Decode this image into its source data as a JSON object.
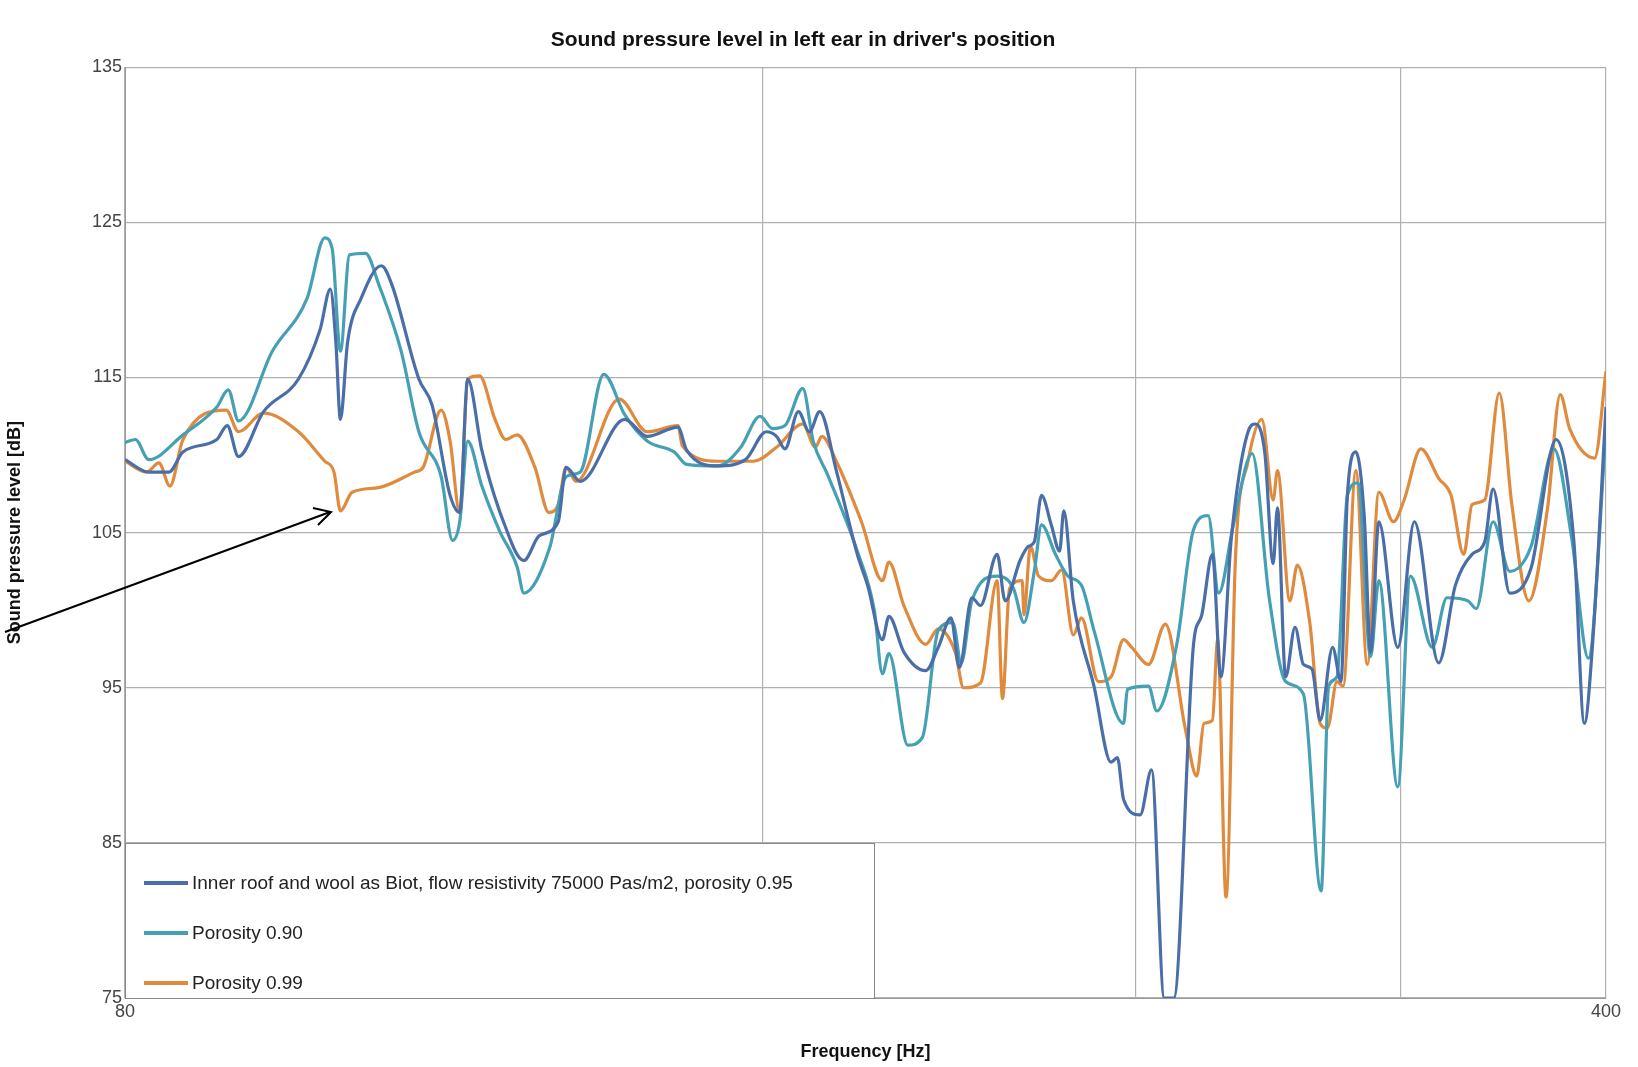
{
  "chart_data": {
    "type": "line",
    "title": "Sound pressure level in left ear in driver's position",
    "xlabel": "Frequency [Hz]",
    "ylabel": "Sound pressure level [dB]",
    "xlim": [
      80,
      400
    ],
    "xticks": [
      80,
      {
        "value": 160,
        "label": null
      },
      {
        "value": 240,
        "label": null
      },
      {
        "value": 320,
        "label": null
      },
      400
    ],
    "ylim": [
      75,
      135
    ],
    "yticks": [
      75,
      85,
      95,
      105,
      115,
      125,
      135
    ],
    "log": "x",
    "grid": true,
    "legend": "bottom left",
    "series": [
      {
        "name": "Inner roof and wool as Biot, flow resistivity 75000 Pas/m2, porosity 0.95",
        "color": "#4a6ea8",
        "x": [
          80,
          82.1,
          83.9,
          85.2,
          88.4,
          89.4,
          90.5,
          93.0,
          96.6,
          98.9,
          100.0,
          100.6,
          101.1,
          101.9,
          103.4,
          105.7,
          106.9,
          110.1,
          111.7,
          113.9,
          115.1,
          116.1,
          117.9,
          120.7,
          123.4,
          125.5,
          128.1,
          129.2,
          131.2,
          137.7,
          141.1,
          145.9,
          147.3,
          152.4,
          157.0,
          160.6,
          162.4,
          163.9,
          166.3,
          168.3,
          170.2,
          173.3,
          177.3,
          179.3,
          182.2,
          183.5,
          186.5,
          191.0,
          193.6,
          196.3,
          198.1,
          200.8,
          202.7,
          206.4,
          208.2,
          211.6,
          213.5,
          214.9,
          216.6,
          218.9,
          220.9,
          221.9,
          224.2,
          229.3,
          233.6,
          235.2,
          236.8,
          241.1,
          244.1,
          247.5,
          250.1,
          255.5,
          257.8,
          260.8,
          263.2,
          266.2,
          271.1,
          273.3,
          276.1,
          278.6,
          279.9,
          282.4,
          285.3,
          287.9,
          290.6,
          293.2,
          297.2,
          299.9,
          302.0,
          304.8,
          307.6,
          309.7,
          312.5,
          319.0,
          324.8,
          333.5,
          339.6,
          345.8,
          350.6,
          353.8,
          360.3,
          368.7,
          378.9,
          386.3,
          390.7,
          394.2,
          400
        ],
        "values": [
          109.7,
          108.9,
          108.9,
          110.2,
          111.0,
          111.9,
          109.9,
          112.8,
          114.9,
          118.1,
          120.7,
          117.3,
          112.3,
          117.3,
          120.1,
          122.2,
          121.0,
          114.9,
          113.2,
          107.4,
          106.3,
          114.9,
          110.3,
          105.7,
          103.2,
          104.8,
          105.7,
          109.2,
          108.3,
          112.3,
          111.2,
          111.8,
          110.3,
          109.3,
          109.7,
          111.5,
          111.2,
          110.4,
          112.8,
          111.5,
          112.8,
          109.0,
          103.6,
          101.6,
          98.1,
          99.6,
          97.3,
          96.1,
          97.6,
          99.5,
          96.3,
          100.8,
          100.3,
          103.6,
          100.6,
          103.2,
          104.1,
          104.4,
          107.4,
          105.5,
          103.8,
          106.4,
          100.6,
          95.1,
          90.2,
          90.5,
          87.8,
          86.8,
          89.7,
          75,
          75,
          97.8,
          99.7,
          103.6,
          95.7,
          104.6,
          111.5,
          112.0,
          110.1,
          103.0,
          106.6,
          95.7,
          98.9,
          96.5,
          96.2,
          92.9,
          97.6,
          95.4,
          107.4,
          110.2,
          106.0,
          97.3,
          105.7,
          97.6,
          105.7,
          96.6,
          101.6,
          103.6,
          104.4,
          107.8,
          101.1,
          102.7,
          111.0,
          104.4,
          92.7,
          97.8,
          113.1
        ]
      },
      {
        "name": "Porosity 0.90",
        "color": "#45a0b4",
        "x": [
          80,
          80.9,
          82.1,
          85.2,
          88.4,
          89.5,
          90.5,
          93.9,
          97.5,
          99.4,
          100.2,
          101.1,
          102.1,
          103.9,
          105.4,
          108.0,
          110.1,
          112.8,
          114.2,
          115.1,
          116.1,
          117.9,
          120.2,
          122.5,
          123.4,
          126.9,
          129.2,
          131.2,
          134.6,
          137.7,
          141.1,
          145.3,
          147.3,
          152.4,
          156.2,
          159.5,
          161.7,
          163.9,
          167.1,
          169.0,
          171.7,
          177.3,
          180.6,
          182.2,
          183.5,
          187.3,
          190.3,
          193.6,
          196.7,
          198.5,
          200.8,
          206.4,
          210.1,
          212.5,
          214.9,
          216.6,
          219.9,
          222.9,
          226.2,
          229.3,
          236.8,
          237.8,
          243.3,
          245.5,
          250.9,
          255.5,
          259.6,
          262.6,
          266.8,
          272.3,
          277.4,
          282.4,
          287.9,
          293.5,
          295.9,
          298.6,
          302.0,
          305.5,
          309.7,
          312.5,
          319.0,
          323.4,
          331.2,
          336.5,
          344.3,
          347.4,
          353.8,
          360.3,
          368.7,
          378.0,
          385.4,
          392.4,
          400
        ],
        "values": [
          110.8,
          111.0,
          109.7,
          111.3,
          113.1,
          114.2,
          112.2,
          116.7,
          120.1,
          124.0,
          123.3,
          116.7,
          122.9,
          123.0,
          121.0,
          116.7,
          111.5,
          108.6,
          104.5,
          105.7,
          110.9,
          108.0,
          105.1,
          102.8,
          101.1,
          104.0,
          108.6,
          108.9,
          115.2,
          112.6,
          110.9,
          110.2,
          109.4,
          109.3,
          110.5,
          112.5,
          111.7,
          111.9,
          114.3,
          110.9,
          108.7,
          103.8,
          100.0,
          95.9,
          97.2,
          91.3,
          91.8,
          98.7,
          99.2,
          96.6,
          100.6,
          102.2,
          101.4,
          99.2,
          102.5,
          105.5,
          103.6,
          102.2,
          101.6,
          98.7,
          92.7,
          94.9,
          95.1,
          93.5,
          97.8,
          105.2,
          106.1,
          101.1,
          105.5,
          110.1,
          100.8,
          95.4,
          94.6,
          81.9,
          95.1,
          95.7,
          107.4,
          108.2,
          97.0,
          101.9,
          88.6,
          102.2,
          97.6,
          100.8,
          100.6,
          100.1,
          105.7,
          102.5,
          104.1,
          110.4,
          104.6,
          96.9,
          111.5
        ]
      },
      {
        "name": "Porosity 0.99",
        "color": "#e08a3e",
        "x": [
          80,
          81.9,
          83.0,
          84.0,
          85.2,
          89.3,
          90.5,
          93.0,
          96.6,
          99.4,
          100.4,
          101.1,
          102.4,
          105.4,
          109.6,
          110.6,
          112.8,
          113.9,
          115.1,
          116.1,
          117.6,
          119.6,
          121.0,
          122.5,
          124.9,
          126.8,
          128.1,
          129.2,
          130.6,
          136.9,
          141.1,
          145.9,
          146.6,
          152.4,
          158.4,
          162.4,
          167.1,
          169.4,
          170.6,
          173.3,
          178.1,
          182.2,
          183.5,
          186.5,
          191.0,
          193.6,
          197.2,
          199.0,
          202.7,
          206.4,
          207.6,
          209.2,
          212.1,
          212.5,
          214.0,
          215.9,
          218.9,
          221.4,
          224.2,
          226.2,
          230.4,
          233.6,
          236.8,
          238.9,
          243.3,
          247.8,
          253.2,
          256.4,
          258.4,
          260.8,
          262.3,
          264.7,
          267.4,
          271.1,
          275.2,
          278.6,
          279.9,
          283.7,
          286.0,
          289.9,
          293.2,
          295.5,
          298.6,
          300.6,
          304.8,
          308.6,
          312.5,
          317.5,
          321.2,
          327.1,
          333.5,
          338.0,
          342.7,
          345.8,
          350.6,
          356.2,
          361.1,
          367.8,
          375.4,
          380.6,
          384.5,
          395.1,
          400
        ],
        "values": [
          109.6,
          108.9,
          109.5,
          108.0,
          111.0,
          112.9,
          111.5,
          112.7,
          111.5,
          109.6,
          108.9,
          106.4,
          107.6,
          107.9,
          108.9,
          109.2,
          112.9,
          110.9,
          106.3,
          114.9,
          115.1,
          112.3,
          111.0,
          111.3,
          109.2,
          106.3,
          106.8,
          109.2,
          108.3,
          113.6,
          111.5,
          111.9,
          110.6,
          109.6,
          109.6,
          110.5,
          112.0,
          110.5,
          111.2,
          109.6,
          105.7,
          101.9,
          103.1,
          100.3,
          97.8,
          98.8,
          97.3,
          95.0,
          95.3,
          101.9,
          94.3,
          101.4,
          101.9,
          99.7,
          104.1,
          102.2,
          101.9,
          102.6,
          98.4,
          99.5,
          95.4,
          95.7,
          98.1,
          97.6,
          96.5,
          99.1,
          92.4,
          89.3,
          92.7,
          92.9,
          98.1,
          81.5,
          103.3,
          109.6,
          112.3,
          107.1,
          109.0,
          100.6,
          102.9,
          99.2,
          92.7,
          92.4,
          95.4,
          95.1,
          109.0,
          96.5,
          107.6,
          105.7,
          107.1,
          110.4,
          108.5,
          107.4,
          103.6,
          106.8,
          107.1,
          114.0,
          106.8,
          100.6,
          106.6,
          113.9,
          111.7,
          109.8,
          115.4
        ]
      }
    ]
  }
}
